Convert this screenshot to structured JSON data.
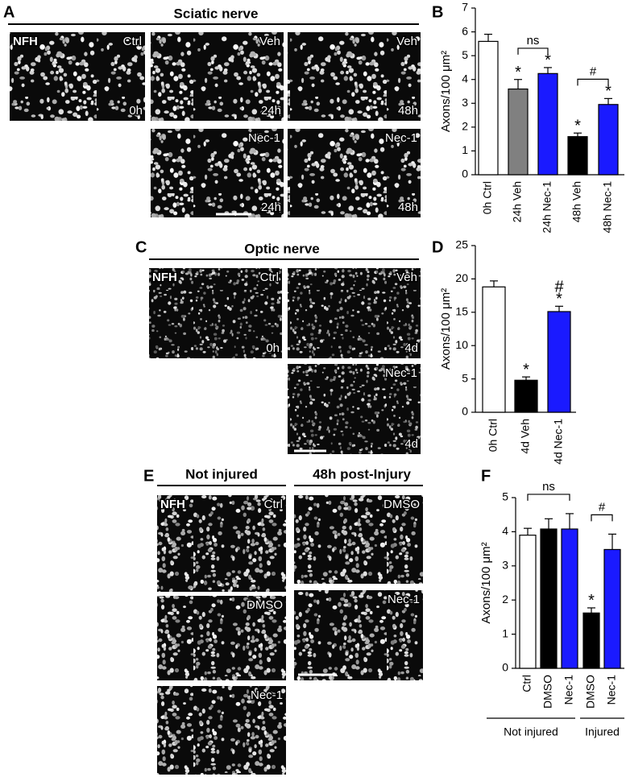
{
  "panels": [
    {
      "letter": "A",
      "title": "Sciatic nerve",
      "images": [
        {
          "top_left": "NFH",
          "top_right": "Ctrl",
          "bottom_right": "0h"
        },
        {
          "top_right": "Veh",
          "bottom_right": "24h"
        },
        {
          "top_right": "Veh",
          "bottom_right": "48h"
        },
        {
          "top_right": "Nec-1",
          "bottom_right": "24h"
        },
        {
          "top_right": "Nec-1",
          "bottom_right": "48h"
        }
      ]
    },
    {
      "letter": "C",
      "title": "Optic nerve",
      "images": [
        {
          "top_left": "NFH",
          "top_right": "Ctrl",
          "bottom_right": "0h"
        },
        {
          "top_right": "Veh",
          "bottom_right": "4d"
        },
        {
          "top_right": "Nec-1",
          "bottom_right": "4d"
        }
      ]
    },
    {
      "letter": "E",
      "headers": [
        "Not injured",
        "48h post-Injury"
      ],
      "images": [
        {
          "top_left": "NFH",
          "top_right": "Ctrl"
        },
        {
          "top_right": "DMSO"
        },
        {
          "top_right": "Nec-1"
        },
        {
          "top_right": "DMSO"
        },
        {
          "top_right": "Nec-1"
        }
      ]
    }
  ],
  "chart_data": [
    {
      "type": "bar",
      "panel_label": "B",
      "y_label": "Axons/100 μm²",
      "categories": [
        "0h Ctrl",
        "24h Veh",
        "24h Nec-1",
        "48h Veh",
        "48h Nec-1"
      ],
      "values": [
        5.6,
        3.6,
        4.25,
        1.6,
        2.95
      ],
      "errors": [
        0.3,
        0.4,
        0.25,
        0.15,
        0.25
      ],
      "colors": [
        "#ffffff",
        "#808080",
        "#1a1aff",
        "#000000",
        "#1a1aff"
      ],
      "annotations": [
        null,
        [
          "*"
        ],
        [
          "*"
        ],
        [
          "*"
        ],
        [
          "*"
        ]
      ],
      "brackets": [
        "ns",
        "#"
      ],
      "ylim": [
        0,
        7
      ],
      "yticks": [
        0,
        1,
        2,
        3,
        4,
        5,
        6,
        7
      ]
    },
    {
      "type": "bar",
      "panel_label": "D",
      "y_label": "Axons/100 μm²",
      "categories": [
        "0h Ctrl",
        "4d Veh",
        "4d Nec-1"
      ],
      "values": [
        18.8,
        4.8,
        15.1
      ],
      "errors": [
        0.9,
        0.5,
        0.8
      ],
      "colors": [
        "#ffffff",
        "#000000",
        "#1a1aff"
      ],
      "annotations": [
        null,
        [
          "*"
        ],
        [
          "*",
          "#"
        ]
      ],
      "ylim": [
        0,
        25
      ],
      "yticks": [
        0,
        5,
        10,
        15,
        20,
        25
      ]
    },
    {
      "type": "bar",
      "panel_label": "F",
      "y_label": "Axons/100 μm²",
      "categories": [
        "Ctrl",
        "DMSO",
        "Nec-1",
        "DMSO",
        "Nec-1"
      ],
      "values": [
        3.9,
        4.08,
        4.08,
        1.62,
        3.48
      ],
      "errors": [
        0.2,
        0.3,
        0.45,
        0.15,
        0.45
      ],
      "colors": [
        "#ffffff",
        "#000000",
        "#1a1aff",
        "#000000",
        "#1a1aff"
      ],
      "annotations": [
        null,
        null,
        null,
        [
          "*"
        ],
        null
      ],
      "brackets": [
        "ns",
        "#"
      ],
      "groups": [
        "Not injured",
        "Injured"
      ],
      "ylim": [
        0,
        5
      ],
      "yticks": [
        0,
        1,
        2,
        3,
        4,
        5
      ]
    }
  ]
}
